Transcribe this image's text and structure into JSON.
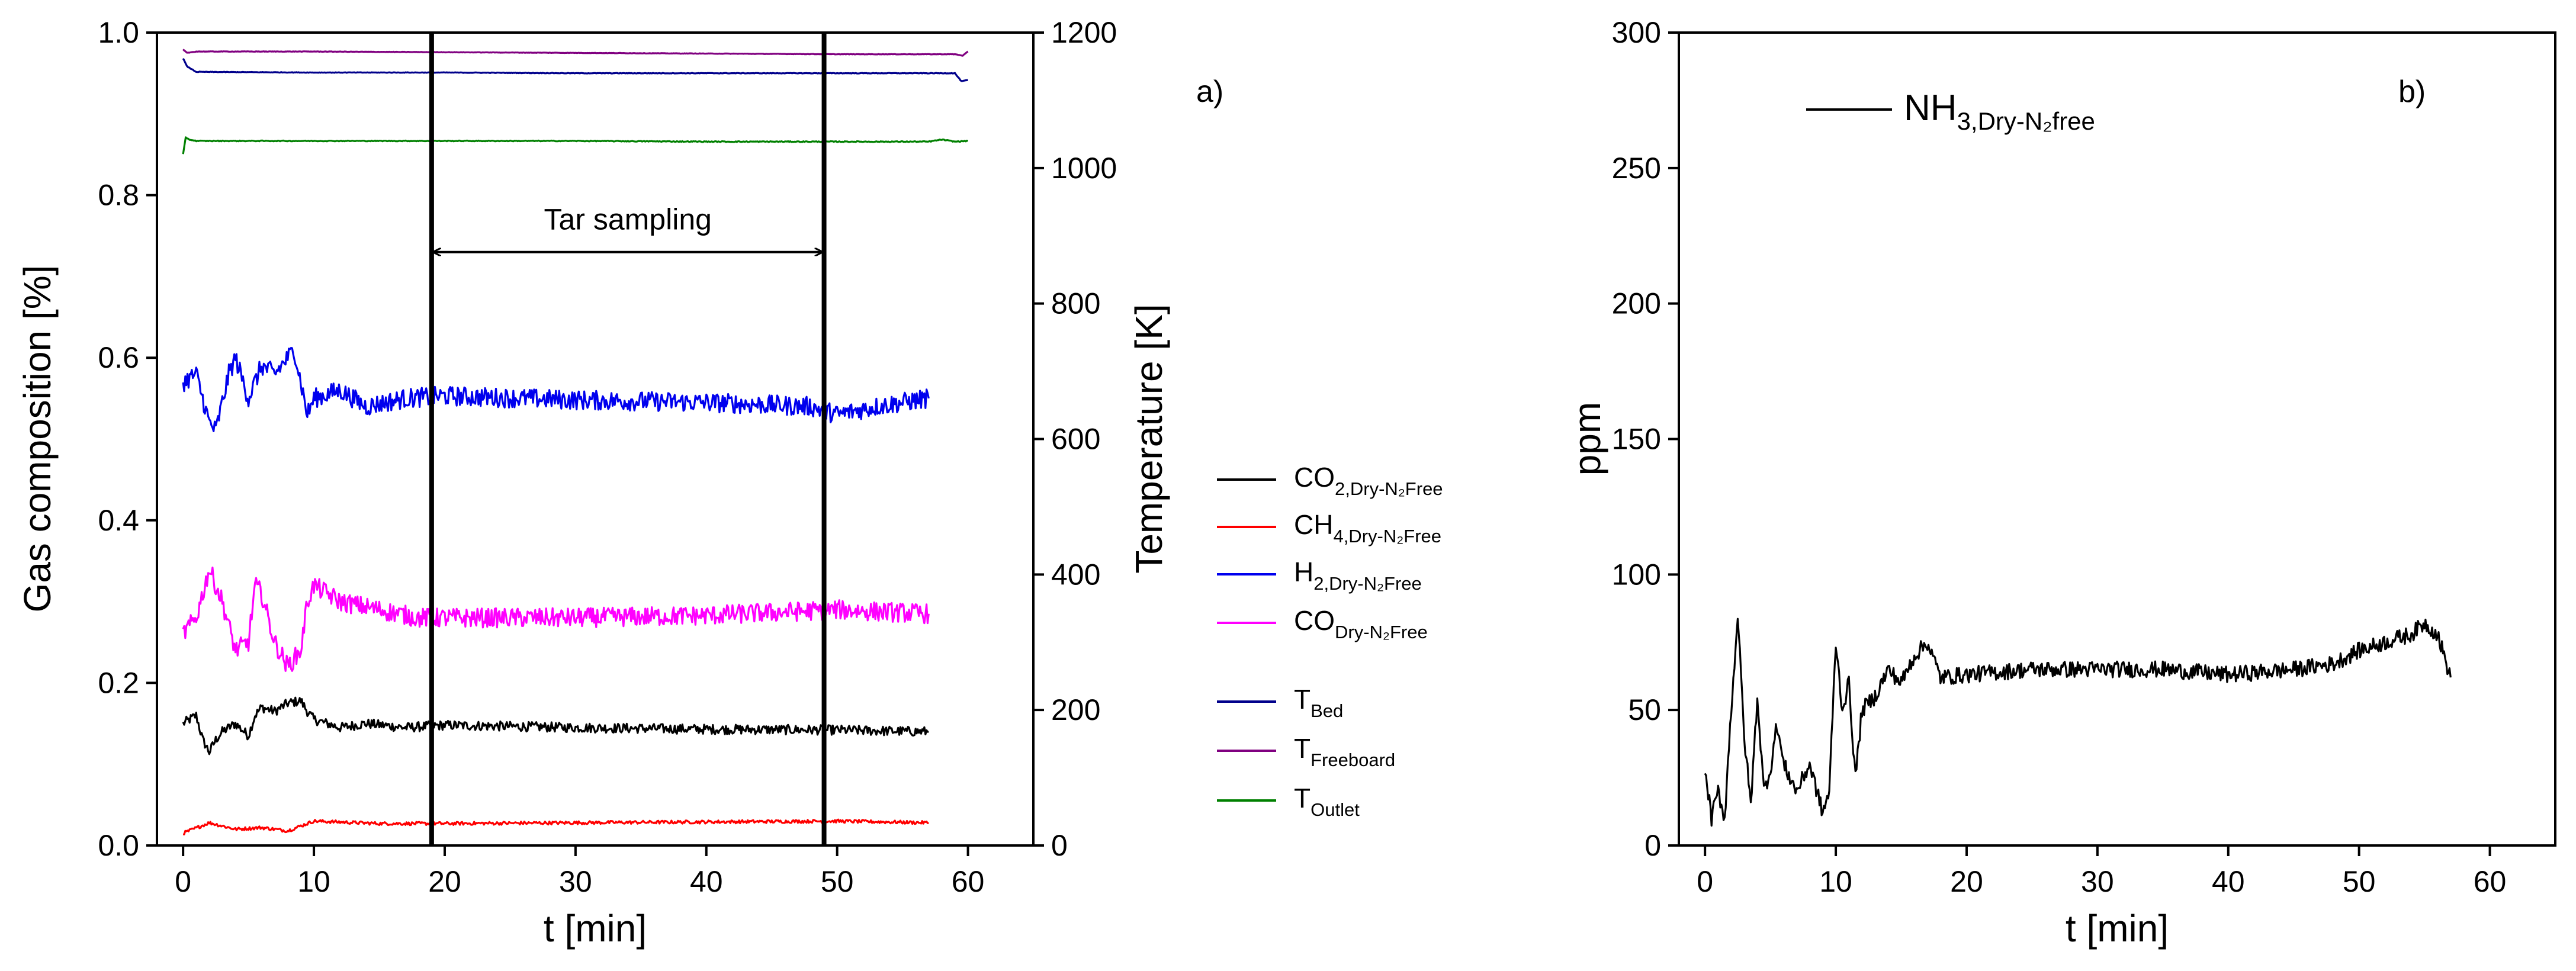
{
  "chart_data": [
    {
      "panel_label": "a)",
      "type": "line",
      "xlabel": "t [min]",
      "ylabel_left": "Gas composition [%]",
      "ylabel_right": "Temperature [K]",
      "xlim": [
        -2,
        65
      ],
      "ylim_left": [
        0,
        1.0
      ],
      "ylim_right": [
        0,
        1200
      ],
      "x_ticks": [
        "0",
        "10",
        "20",
        "30",
        "40",
        "50",
        "60"
      ],
      "y_ticks_left": [
        "0.0",
        "0.2",
        "0.4",
        "0.6",
        "0.8",
        "1.0"
      ],
      "y_ticks_right": [
        "0",
        "200",
        "400",
        "600",
        "800",
        "1000",
        "1200"
      ],
      "annotation": {
        "text": "Tar sampling",
        "x_start": 19,
        "x_end": 49
      },
      "vertical_lines": [
        19,
        49
      ],
      "series": [
        {
          "name": "CO",
          "subscript": "2,Dry-N₂Free",
          "axis": "left",
          "color": "#000000",
          "noise": 0.006,
          "points": [
            [
              0,
              0.15
            ],
            [
              1,
              0.16
            ],
            [
              1.5,
              0.13
            ],
            [
              2,
              0.115
            ],
            [
              2.5,
              0.13
            ],
            [
              3,
              0.14
            ],
            [
              4,
              0.15
            ],
            [
              5,
              0.135
            ],
            [
              5.5,
              0.16
            ],
            [
              6,
              0.17
            ],
            [
              7,
              0.165
            ],
            [
              8,
              0.175
            ],
            [
              9,
              0.178
            ],
            [
              9.5,
              0.165
            ],
            [
              10,
              0.155
            ],
            [
              12,
              0.145
            ],
            [
              14,
              0.15
            ],
            [
              17,
              0.145
            ],
            [
              20,
              0.148
            ],
            [
              30,
              0.145
            ],
            [
              40,
              0.143
            ],
            [
              50,
              0.142
            ],
            [
              57,
              0.14
            ]
          ]
        },
        {
          "name": "CH",
          "subscript": "4,Dry-N₂Free",
          "axis": "left",
          "color": "#ff0000",
          "noise": 0.002,
          "points": [
            [
              0,
              0.015
            ],
            [
              2,
              0.028
            ],
            [
              4,
              0.02
            ],
            [
              6,
              0.022
            ],
            [
              8,
              0.018
            ],
            [
              10,
              0.03
            ],
            [
              15,
              0.027
            ],
            [
              20,
              0.027
            ],
            [
              30,
              0.028
            ],
            [
              40,
              0.029
            ],
            [
              50,
              0.03
            ],
            [
              57,
              0.028
            ]
          ]
        },
        {
          "name": "H",
          "subscript": "2,Dry-N₂Free",
          "axis": "left",
          "color": "#0000ee",
          "noise": 0.012,
          "points": [
            [
              0,
              0.57
            ],
            [
              1,
              0.58
            ],
            [
              2,
              0.52
            ],
            [
              2.5,
              0.51
            ],
            [
              3.5,
              0.58
            ],
            [
              4,
              0.6
            ],
            [
              5,
              0.55
            ],
            [
              6,
              0.59
            ],
            [
              7,
              0.58
            ],
            [
              8,
              0.6
            ],
            [
              8.5,
              0.61
            ],
            [
              9.5,
              0.53
            ],
            [
              10,
              0.55
            ],
            [
              12,
              0.56
            ],
            [
              14,
              0.54
            ],
            [
              17,
              0.55
            ],
            [
              20,
              0.553
            ],
            [
              30,
              0.548
            ],
            [
              40,
              0.545
            ],
            [
              48,
              0.54
            ],
            [
              50,
              0.53
            ],
            [
              53,
              0.54
            ],
            [
              57,
              0.55
            ]
          ]
        },
        {
          "name": "CO",
          "subscript": "Dry-N₂Free",
          "axis": "left",
          "color": "#ff00ff",
          "noise": 0.012,
          "points": [
            [
              0,
              0.26
            ],
            [
              1,
              0.28
            ],
            [
              2,
              0.34
            ],
            [
              3,
              0.3
            ],
            [
              4,
              0.24
            ],
            [
              5,
              0.25
            ],
            [
              5.5,
              0.32
            ],
            [
              6,
              0.31
            ],
            [
              7,
              0.25
            ],
            [
              8,
              0.22
            ],
            [
              9,
              0.24
            ],
            [
              9.5,
              0.3
            ],
            [
              10,
              0.32
            ],
            [
              12,
              0.3
            ],
            [
              15,
              0.29
            ],
            [
              18,
              0.28
            ],
            [
              20,
              0.28
            ],
            [
              30,
              0.28
            ],
            [
              40,
              0.283
            ],
            [
              50,
              0.29
            ],
            [
              57,
              0.285
            ]
          ]
        },
        {
          "name": "T",
          "subscript": "Bed",
          "axis": "right",
          "color": "#00008b",
          "noise": 0.4,
          "points": [
            [
              0,
              1162
            ],
            [
              0.3,
              1150
            ],
            [
              1,
              1142
            ],
            [
              10,
              1141
            ],
            [
              20,
              1141
            ],
            [
              30,
              1140
            ],
            [
              40,
              1140
            ],
            [
              50,
              1140
            ],
            [
              59,
              1140
            ],
            [
              59.5,
              1128
            ],
            [
              60,
              1130
            ]
          ]
        },
        {
          "name": "T",
          "subscript": "Freeboard",
          "axis": "right",
          "color": "#800080",
          "noise": 0.3,
          "points": [
            [
              0,
              1175
            ],
            [
              0.3,
              1170
            ],
            [
              1,
              1172
            ],
            [
              10,
              1172
            ],
            [
              20,
              1171
            ],
            [
              30,
              1170
            ],
            [
              40,
              1169
            ],
            [
              50,
              1168
            ],
            [
              59,
              1168
            ],
            [
              59.6,
              1166
            ],
            [
              60,
              1172
            ]
          ]
        },
        {
          "name": "T",
          "subscript": "Outlet",
          "axis": "right",
          "color": "#008000",
          "noise": 0.6,
          "points": [
            [
              0,
              1020
            ],
            [
              0.2,
              1045
            ],
            [
              0.5,
              1042
            ],
            [
              1,
              1040
            ],
            [
              10,
              1040
            ],
            [
              20,
              1040
            ],
            [
              30,
              1040
            ],
            [
              40,
              1039
            ],
            [
              50,
              1039
            ],
            [
              57,
              1039
            ],
            [
              58,
              1042
            ],
            [
              59,
              1039
            ],
            [
              60,
              1040
            ]
          ]
        }
      ]
    },
    {
      "panel_label": "b)",
      "type": "line",
      "xlabel": "t [min]",
      "ylabel": "ppm",
      "xlim": [
        -2,
        65
      ],
      "ylim": [
        0,
        300
      ],
      "x_ticks": [
        "0",
        "10",
        "20",
        "30",
        "40",
        "50",
        "60"
      ],
      "y_ticks": [
        "0",
        "50",
        "100",
        "150",
        "200",
        "250",
        "300"
      ],
      "series": [
        {
          "name": "NH",
          "subscript": "3,Dry-N₂free",
          "color": "#000000",
          "noise": 3.0,
          "points": [
            [
              0,
              28
            ],
            [
              0.5,
              10
            ],
            [
              1,
              20
            ],
            [
              1.5,
              10
            ],
            [
              2,
              50
            ],
            [
              2.5,
              85
            ],
            [
              3,
              40
            ],
            [
              3.5,
              15
            ],
            [
              4,
              55
            ],
            [
              4.5,
              20
            ],
            [
              5,
              28
            ],
            [
              5.5,
              45
            ],
            [
              6,
              30
            ],
            [
              6.5,
              25
            ],
            [
              7,
              20
            ],
            [
              8,
              30
            ],
            [
              9,
              12
            ],
            [
              9.5,
              20
            ],
            [
              10,
              75
            ],
            [
              10.5,
              50
            ],
            [
              11,
              60
            ],
            [
              11.5,
              25
            ],
            [
              12,
              50
            ],
            [
              13,
              55
            ],
            [
              14,
              65
            ],
            [
              15,
              60
            ],
            [
              16,
              70
            ],
            [
              17,
              75
            ],
            [
              18,
              62
            ],
            [
              20,
              63
            ],
            [
              25,
              65
            ],
            [
              30,
              65
            ],
            [
              35,
              65
            ],
            [
              40,
              63
            ],
            [
              45,
              65
            ],
            [
              48,
              67
            ],
            [
              50,
              72
            ],
            [
              52,
              75
            ],
            [
              54,
              78
            ],
            [
              55,
              82
            ],
            [
              56,
              78
            ],
            [
              57,
              62
            ]
          ]
        }
      ]
    }
  ]
}
